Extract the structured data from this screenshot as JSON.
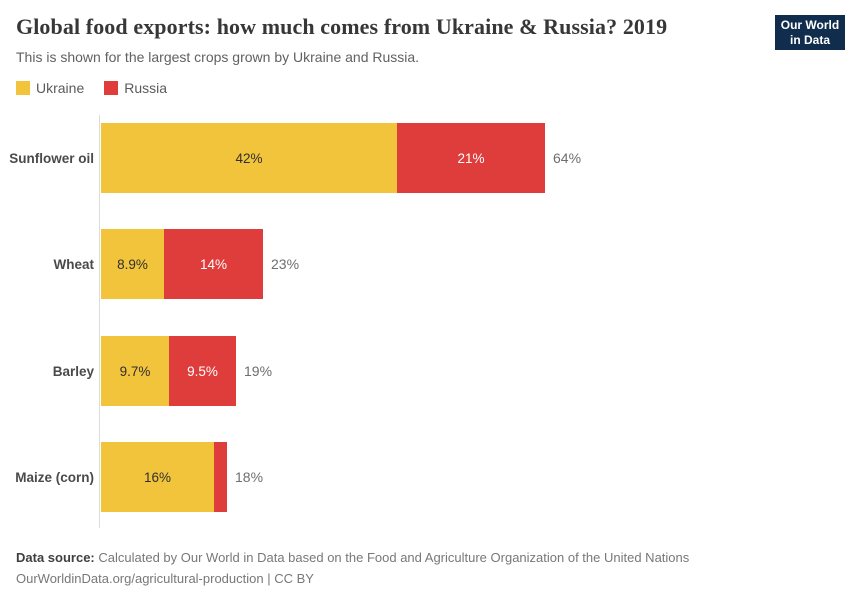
{
  "header": {
    "title": "Global food exports: how much comes from Ukraine & Russia? 2019",
    "subtitle": "This is shown for the largest crops grown by Ukraine and Russia.",
    "logo": {
      "line1": "Our World",
      "line2": "in Data",
      "bg": "#102d4e",
      "stripe": "#d42b21"
    }
  },
  "legend": {
    "items": [
      {
        "label": "Ukraine",
        "color": "#f2c43c"
      },
      {
        "label": "Russia",
        "color": "#de3d3c"
      }
    ]
  },
  "chart_data": {
    "type": "bar",
    "orientation": "horizontal",
    "stacked": true,
    "title": "Global food exports: how much comes from Ukraine & Russia? 2019",
    "subtitle": "This is shown for the largest crops grown by Ukraine and Russia.",
    "unit": "%",
    "xlim": [
      0,
      70
    ],
    "grid": false,
    "legend_position": "top-left",
    "categories": [
      "Sunflower oil",
      "Wheat",
      "Barley",
      "Maize (corn)"
    ],
    "series": [
      {
        "name": "Ukraine",
        "color": "#f2c43c",
        "label_color": "#2f2f2f",
        "values": [
          42,
          8.9,
          9.7,
          16
        ],
        "labels": [
          "42%",
          "8.9%",
          "9.7%",
          "16%"
        ]
      },
      {
        "name": "Russia",
        "color": "#de3d3c",
        "label_color": "#ffffff",
        "values": [
          21,
          14,
          9.5,
          1.8
        ],
        "labels": [
          "21%",
          "14%",
          "9.5%",
          ""
        ]
      }
    ],
    "totals": [
      "64%",
      "23%",
      "19%",
      "18%"
    ]
  },
  "footer": {
    "source_label": "Data source:",
    "source_text": "Calculated by Our World in Data based on the Food and Agriculture Organization of the United Nations",
    "note": "OurWorldinData.org/agricultural-production | CC BY"
  }
}
